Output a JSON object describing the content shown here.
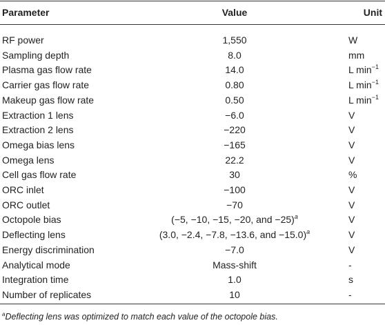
{
  "table": {
    "header": [
      "Parameter",
      "Value",
      "Unit"
    ],
    "rows": [
      [
        "RF power",
        "1,550",
        "W"
      ],
      [
        "Sampling depth",
        "8.0",
        "mm"
      ],
      [
        "Plasma gas flow rate",
        "14.0",
        {
          "text": "L min",
          "sup": "−1"
        }
      ],
      [
        "Carrier gas flow rate",
        "0.80",
        {
          "text": "L min",
          "sup": "−1"
        }
      ],
      [
        "Makeup gas flow rate",
        "0.50",
        {
          "text": "L min",
          "sup": "−1"
        }
      ],
      [
        "Extraction 1 lens",
        "−6.0",
        "V"
      ],
      [
        "Extraction 2 lens",
        "−220",
        "V"
      ],
      [
        "Omega bias lens",
        "−165",
        "V"
      ],
      [
        "Omega lens",
        "22.2",
        "V"
      ],
      [
        "Cell gas flow rate",
        "30",
        "%"
      ],
      [
        "ORC inlet",
        "−100",
        "V"
      ],
      [
        "ORC outlet",
        "−70",
        "V"
      ],
      [
        "Octopole bias",
        {
          "text": "(−5, −10, −15, −20, and −25)",
          "sup": "a"
        },
        "V"
      ],
      [
        "Deflecting lens",
        {
          "text": "(3.0, −2.4, −7.8, −13.6, and −15.0)",
          "sup": "a"
        },
        "V"
      ],
      [
        "Energy discrimination",
        "−7.0",
        "V"
      ],
      [
        "Analytical mode",
        "Mass-shift",
        "-"
      ],
      [
        "Integration time",
        "1.0",
        "s"
      ],
      [
        "Number of replicates",
        "10",
        "-"
      ]
    ],
    "footnote": {
      "mark": "a",
      "text": "Deflecting lens was optimized to match each value of the octopole bias."
    }
  }
}
